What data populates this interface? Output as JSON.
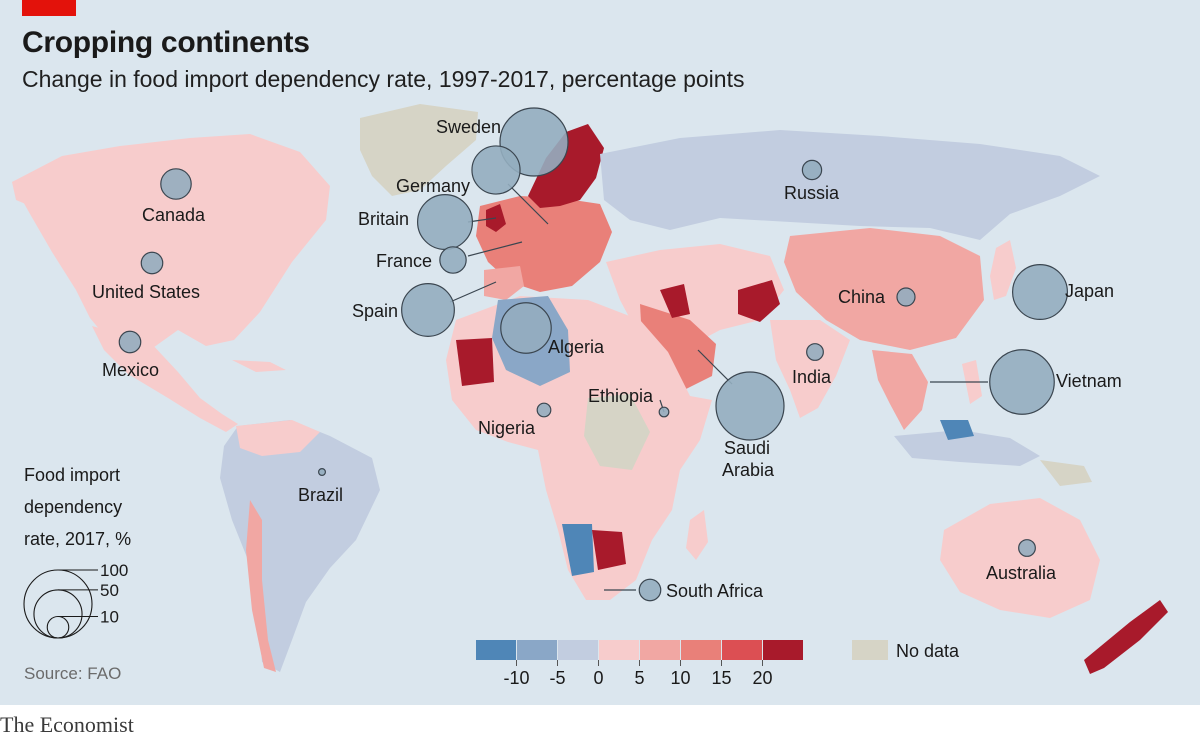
{
  "header": {
    "title": "Cropping continents",
    "subtitle": "Change in food import dependency rate, 1997-2017, percentage points"
  },
  "footer": {
    "source": "Source: FAO",
    "brand": "The Economist"
  },
  "colors": {
    "ocean": "#dbe6ee",
    "no_data": "#d6d4c6",
    "scale": [
      "#4f86b7",
      "#8aa7c7",
      "#c2cde0",
      "#f7cccc",
      "#f1a7a3",
      "#e98079",
      "#dc4f53",
      "#a81a2b"
    ],
    "bubble_fill": "#94adbf",
    "bubble_stroke": "#3b4650",
    "brand_red": "#e3120b"
  },
  "legend": {
    "color_ticks": [
      "-10",
      "-5",
      "0",
      "5",
      "10",
      "15",
      "20"
    ],
    "no_data_label": "No data",
    "size_title": [
      "Food import",
      "dependency",
      "rate, 2017, %"
    ],
    "size_values": [
      "100",
      "50",
      "10"
    ]
  },
  "countries": [
    {
      "name": "Canada",
      "rate_2017": 20
    },
    {
      "name": "United States",
      "rate_2017": 10
    },
    {
      "name": "Mexico",
      "rate_2017": 10
    },
    {
      "name": "Brazil",
      "rate_2017": 1
    },
    {
      "name": "Sweden",
      "rate_2017": 100
    },
    {
      "name": "Germany",
      "rate_2017": 50
    },
    {
      "name": "Britain",
      "rate_2017": 65
    },
    {
      "name": "France",
      "rate_2017": 15
    },
    {
      "name": "Spain",
      "rate_2017": 60
    },
    {
      "name": "Algeria",
      "rate_2017": 55
    },
    {
      "name": "Nigeria",
      "rate_2017": 4
    },
    {
      "name": "Ethiopia",
      "rate_2017": 2
    },
    {
      "name": "Saudi Arabia",
      "rate_2017": 100
    },
    {
      "name": "South Africa",
      "rate_2017": 10
    },
    {
      "name": "Russia",
      "rate_2017": 8
    },
    {
      "name": "China",
      "rate_2017": 7
    },
    {
      "name": "Japan",
      "rate_2017": 65
    },
    {
      "name": "India",
      "rate_2017": 6
    },
    {
      "name": "Vietnam",
      "rate_2017": 90
    },
    {
      "name": "Australia",
      "rate_2017": 6
    }
  ]
}
